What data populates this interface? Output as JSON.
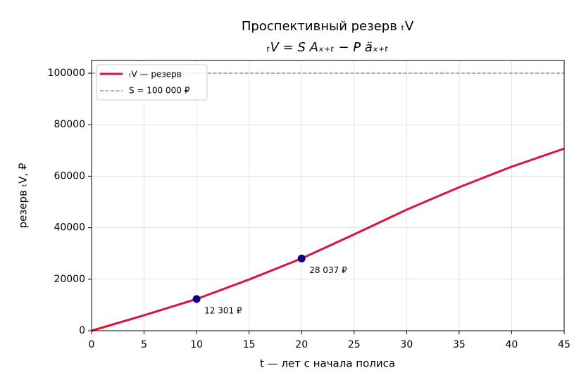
{
  "chart_data": {
    "type": "line",
    "title": "Проспективный резерв ₜV",
    "subtitle": "ₜV = S Aₓ₊ₜ − P äₓ₊ₜ",
    "x_label": "t — лет с начала полиса",
    "y_label": "резерв ₜV, ₽",
    "x": [
      0,
      5,
      10,
      15,
      20,
      25,
      30,
      35,
      40,
      45
    ],
    "series": [
      {
        "name": "ₜV — резерв",
        "color": "#dc143c",
        "values": [
          0,
          6000,
          12301,
          19900,
          28037,
          37400,
          47000,
          55700,
          63700,
          70700
        ]
      }
    ],
    "highlights": {
      "x": [
        10,
        20
      ],
      "values": [
        12301,
        28037
      ],
      "value_labels": [
        "12 301 ₽",
        "28 037 ₽"
      ],
      "color": "#000080"
    },
    "reference_line": {
      "name": "S = 100 000 ₽",
      "value": 100000,
      "color": "#808080"
    },
    "xlim": [
      0,
      45
    ],
    "ylim": [
      0,
      105000
    ],
    "xticks": [
      0,
      5,
      10,
      15,
      20,
      25,
      30,
      35,
      40,
      45
    ],
    "yticks": [
      0,
      20000,
      40000,
      60000,
      80000,
      100000
    ],
    "grid": true,
    "legend": "upper-left"
  }
}
